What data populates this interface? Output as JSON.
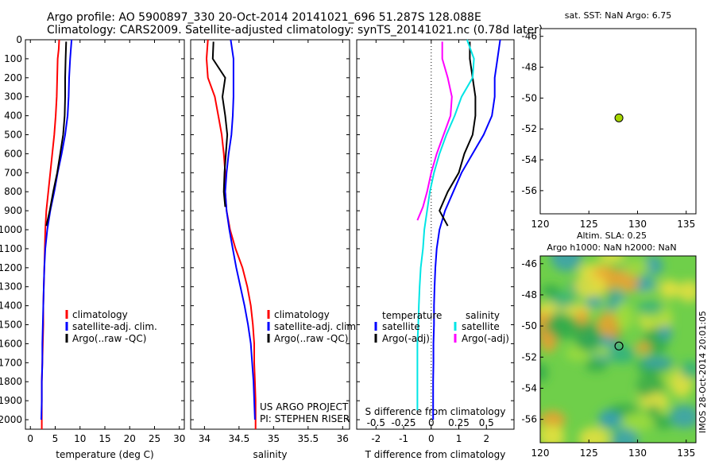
{
  "header": {
    "line1": "Argo profile: AO 5900897_330 20-Oct-2014 20141021_696 51.287S 128.088E",
    "line2": "Climatology: CARS2009. Satellite-adjusted climatology: synTS_20141021.nc (0.78d later)"
  },
  "side_stamp": "IMOS 28-Oct-2014 20:01:05",
  "colors": {
    "climatology": "#ff0000",
    "satellite": "#0000ff",
    "argo": "#000000",
    "satellite_salinity": "#00e5e5",
    "argo_salinity": "#ff00ff",
    "marker": "#a6d600"
  },
  "chart_data": [
    {
      "type": "line",
      "panel": "temperature",
      "xlabel": "temperature (deg C)",
      "ylabel": "",
      "xlim": [
        -1,
        31
      ],
      "ylim": [
        2050,
        0
      ],
      "xticks": [
        0,
        5,
        10,
        15,
        20,
        25,
        30
      ],
      "yticks": [
        0,
        100,
        200,
        300,
        400,
        500,
        600,
        700,
        800,
        900,
        1000,
        1100,
        1200,
        1300,
        1400,
        1500,
        1600,
        1700,
        1800,
        1900,
        2000
      ],
      "legend": {
        "placement": "lower-center",
        "entries": [
          "climatology",
          "satellite-adj. clim.",
          "Argo(..raw -QC)"
        ]
      },
      "series": [
        {
          "name": "climatology",
          "color": "#ff0000",
          "x": [
            5.8,
            5.7,
            5.5,
            5.4,
            5.3,
            5.1,
            4.8,
            4.4,
            4.0,
            3.6,
            3.2,
            3.0,
            2.9,
            2.8,
            2.7,
            2.6,
            2.6,
            2.5,
            2.4,
            2.3,
            2.3,
            2.3
          ],
          "y": [
            0,
            50,
            100,
            200,
            300,
            400,
            500,
            600,
            700,
            800,
            900,
            1000,
            1100,
            1200,
            1300,
            1400,
            1500,
            1600,
            1700,
            1800,
            1900,
            2050
          ]
        },
        {
          "name": "satellite-adj. clim.",
          "color": "#0000ff",
          "x": [
            8.3,
            8.0,
            7.8,
            7.7,
            7.5,
            7.0,
            6.3,
            5.5,
            4.8,
            4.0,
            3.4,
            3.0,
            2.8,
            2.7,
            2.6,
            2.5,
            2.4,
            2.4,
            2.3,
            2.3,
            2.2
          ],
          "y": [
            0,
            100,
            200,
            300,
            400,
            500,
            600,
            700,
            800,
            900,
            1000,
            1100,
            1200,
            1300,
            1400,
            1500,
            1600,
            1700,
            1800,
            1900,
            2000
          ]
        },
        {
          "name": "Argo(..raw -QC)",
          "color": "#000000",
          "x": [
            7.2,
            7.1,
            7.0,
            7.0,
            6.9,
            6.6,
            6.0,
            5.4,
            4.6,
            3.9,
            3.2
          ],
          "y": [
            10,
            100,
            200,
            300,
            400,
            500,
            600,
            700,
            800,
            900,
            980
          ]
        }
      ]
    },
    {
      "type": "line",
      "panel": "salinity",
      "xlabel": "salinity",
      "ylabel": "",
      "xlim": [
        33.8,
        36.1
      ],
      "ylim": [
        2050,
        0
      ],
      "xticks": [
        34,
        34.5,
        35,
        35.5,
        36
      ],
      "legend": {
        "placement": "lower-center",
        "entries": [
          "climatology",
          "satellite-adj. clim.",
          "Argo(..raw -QC)"
        ]
      },
      "annotation": [
        "US ARGO PROJECT",
        "PI: STEPHEN RISER"
      ],
      "series": [
        {
          "name": "climatology",
          "color": "#ff0000",
          "x": [
            34.05,
            34.03,
            34.05,
            34.15,
            34.2,
            34.25,
            34.28,
            34.3,
            34.3,
            34.32,
            34.37,
            34.45,
            34.55,
            34.62,
            34.67,
            34.7,
            34.72,
            34.72,
            34.73,
            34.74,
            34.74
          ],
          "y": [
            0,
            100,
            200,
            300,
            400,
            500,
            600,
            700,
            800,
            900,
            1000,
            1100,
            1200,
            1300,
            1400,
            1500,
            1600,
            1700,
            1800,
            1900,
            2050
          ]
        },
        {
          "name": "satellite-adj. clim.",
          "color": "#0000ff",
          "x": [
            34.38,
            34.42,
            34.42,
            34.42,
            34.41,
            34.39,
            34.35,
            34.32,
            34.3,
            34.32,
            34.36,
            34.41,
            34.46,
            34.52,
            34.58,
            34.63,
            34.67,
            34.69,
            34.71,
            34.72,
            34.73
          ],
          "y": [
            0,
            100,
            200,
            300,
            400,
            500,
            600,
            700,
            800,
            900,
            1000,
            1100,
            1200,
            1300,
            1400,
            1500,
            1600,
            1700,
            1800,
            1900,
            2000
          ]
        },
        {
          "name": "Argo(..raw -QC)",
          "color": "#000000",
          "x": [
            34.13,
            34.12,
            34.3,
            34.26,
            34.3,
            34.33,
            34.31,
            34.29,
            34.28,
            34.3
          ],
          "y": [
            10,
            100,
            200,
            300,
            400,
            500,
            600,
            700,
            800,
            880
          ]
        }
      ]
    },
    {
      "type": "line",
      "panel": "differences",
      "xlabel": "T difference from climatology",
      "x2label": "S difference from climatology",
      "ylabel": "",
      "xlim": [
        -2.7,
        3.0
      ],
      "ylim": [
        2050,
        0
      ],
      "xticks": [
        -2,
        -1,
        0,
        1,
        2
      ],
      "x2ticks": [
        "-0.5",
        "-0.25",
        "0",
        "0.25",
        "0.5"
      ],
      "x2tick_positions": [
        -2,
        -1,
        0,
        1,
        2
      ],
      "legend": {
        "placement": "lower-center",
        "groups": [
          {
            "title": "temperature",
            "entries": [
              "satellite",
              "Argo(-adj)"
            ]
          },
          {
            "title": "salinity",
            "entries": [
              "satellite",
              "Argo(-adj)"
            ]
          }
        ]
      },
      "series": [
        {
          "name": "satellite",
          "group": "temperature",
          "color": "#0000ff",
          "x": [
            2.5,
            2.4,
            2.3,
            2.3,
            2.2,
            1.9,
            1.5,
            1.1,
            0.8,
            0.5,
            0.3,
            0.2,
            0.15,
            0.12,
            0.1,
            0.1,
            0.08,
            0.08,
            0.07,
            0.07,
            0.07
          ],
          "y": [
            0,
            100,
            200,
            300,
            400,
            500,
            600,
            700,
            800,
            900,
            1000,
            1100,
            1200,
            1300,
            1400,
            1500,
            1600,
            1700,
            1800,
            1900,
            2000
          ]
        },
        {
          "name": "Argo(-adj)",
          "group": "temperature",
          "color": "#000000",
          "x": [
            1.4,
            1.4,
            1.5,
            1.6,
            1.6,
            1.5,
            1.2,
            1.0,
            0.6,
            0.3,
            0.6
          ],
          "y": [
            10,
            100,
            200,
            300,
            400,
            500,
            600,
            700,
            800,
            900,
            980
          ]
        },
        {
          "name": "satellite",
          "group": "salinity",
          "color": "#00e5e5",
          "x": [
            1.3,
            1.55,
            1.5,
            1.1,
            0.85,
            0.55,
            0.3,
            0.1,
            -0.05,
            -0.15,
            -0.25,
            -0.3,
            -0.38,
            -0.42,
            -0.45,
            -0.47,
            -0.5,
            -0.5,
            -0.5,
            -0.5
          ],
          "y": [
            0,
            100,
            200,
            300,
            400,
            500,
            600,
            700,
            800,
            900,
            1000,
            1100,
            1200,
            1300,
            1400,
            1500,
            1600,
            1700,
            1800,
            1950
          ]
        },
        {
          "name": "Argo(-adj)",
          "group": "salinity",
          "color": "#ff00ff",
          "x": [
            0.4,
            0.4,
            0.6,
            0.75,
            0.7,
            0.45,
            0.2,
            0.0,
            -0.15,
            -0.3,
            -0.5
          ],
          "y": [
            10,
            100,
            200,
            300,
            400,
            500,
            600,
            700,
            800,
            880,
            950
          ]
        }
      ]
    },
    {
      "type": "scatter",
      "panel": "location",
      "title": "sat. SST: NaN Argo: 6.75",
      "xlim": [
        120,
        136
      ],
      "ylim": [
        -57.5,
        -45.5
      ],
      "xticks": [
        120,
        125,
        130,
        135
      ],
      "yticks": [
        -46,
        -48,
        -50,
        -52,
        -54,
        -56
      ],
      "points": [
        {
          "x": 128.088,
          "y": -51.287
        }
      ]
    },
    {
      "type": "heatmap",
      "panel": "sla",
      "title": [
        "Altim. SLA: 0.25",
        "Argo h1000: NaN h2000: NaN"
      ],
      "xlim": [
        120,
        136
      ],
      "ylim": [
        -57.5,
        -45.5
      ],
      "xticks": [
        120,
        125,
        130,
        135
      ],
      "yticks": [
        -46,
        -48,
        -50,
        -52,
        -54,
        -56
      ],
      "points": [
        {
          "x": 128.088,
          "y": -51.287
        }
      ]
    }
  ]
}
